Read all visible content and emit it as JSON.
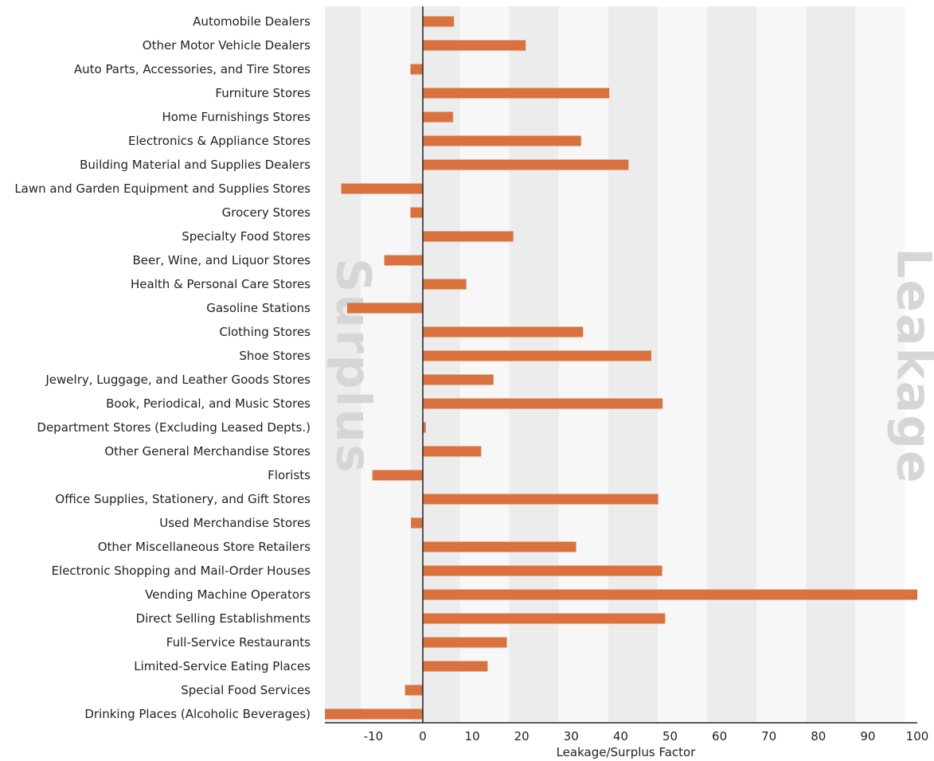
{
  "chart_data": {
    "type": "bar",
    "orientation": "horizontal",
    "xlabel": "Leakage/Surplus Factor",
    "ylabel": "",
    "xlim": [
      -20,
      100
    ],
    "xticks": [
      -10,
      0,
      10,
      20,
      30,
      40,
      50,
      60,
      70,
      80,
      90,
      100
    ],
    "grid": "alternating vertical bands",
    "bar_color": "#d9723f",
    "band_colors": [
      "#ececec",
      "#f7f7f7"
    ],
    "watermarks": {
      "left": "Surplus",
      "right": "Leakage"
    },
    "categories": [
      "Automobile Dealers",
      "Other Motor Vehicle Dealers",
      "Auto Parts, Accessories, and Tire Stores",
      "Furniture Stores",
      "Home Furnishings Stores",
      "Electronics & Appliance Stores",
      "Building Material and Supplies Dealers",
      "Lawn and Garden Equipment and Supplies Stores",
      "Grocery Stores",
      "Specialty Food Stores",
      "Beer, Wine, and Liquor Stores",
      "Health & Personal Care Stores",
      "Gasoline Stations",
      "Clothing Stores",
      "Shoe Stores",
      "Jewelry, Luggage, and Leather Goods Stores",
      "Book, Periodical, and Music Stores",
      "Department Stores (Excluding Leased Depts.)",
      "Other General Merchandise Stores",
      "Florists",
      "Office Supplies, Stationery, and Gift Stores",
      "Used Merchandise Stores",
      "Other Miscellaneous Store Retailers",
      "Electronic Shopping and Mail-Order Houses",
      "Vending Machine Operators",
      "Direct Selling Establishments",
      "Full-Service Restaurants",
      "Limited-Service Eating Places",
      "Special Food Services",
      "Drinking Places (Alcoholic Beverages)"
    ],
    "values": [
      6.3,
      20.8,
      -2.5,
      37.7,
      6.1,
      32.0,
      41.6,
      -16.5,
      -2.5,
      18.3,
      -7.8,
      8.8,
      -15.3,
      32.4,
      46.2,
      14.3,
      48.5,
      0.6,
      11.8,
      -10.2,
      47.6,
      -2.4,
      31.0,
      48.4,
      100.0,
      49.0,
      17.0,
      13.1,
      -3.6,
      -19.8
    ]
  }
}
